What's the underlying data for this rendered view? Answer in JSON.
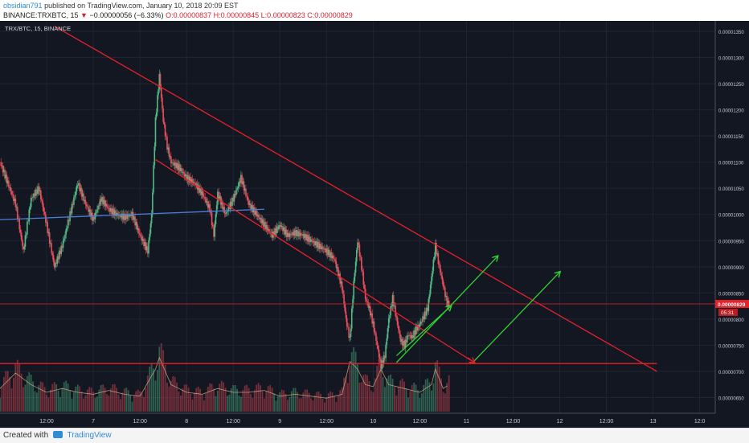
{
  "header": {
    "author": "obsidian791",
    "published_text": "published on TradingView.com, January 10, 2018 20:09 EST",
    "symbol_line": "BINANCE:TRXBTC, 15",
    "change_text": "−0.00000056 (−6.33%)",
    "ohlc_text": "O:0.00000837 H:0.00000845 L:0.00000823 C:0.00000829"
  },
  "footer": {
    "created_with": "Created with",
    "brand": "TradingView"
  },
  "colors": {
    "background": "#131722",
    "grid": "#1f2433",
    "up": "#53b987",
    "down": "#eb4d5c",
    "trend": "#e8202a",
    "arrow": "#32d232",
    "ma": "#4a7fd6"
  },
  "chart_data": {
    "type": "candlestick",
    "legend": "TRX/BTC, 15, BINANCE",
    "x_ticks": [
      "12:00",
      "7",
      "12:00",
      "8",
      "12:00",
      "9",
      "12:00",
      "10",
      "12:00",
      "11",
      "12:00",
      "12",
      "12:00",
      "13",
      "12:0"
    ],
    "x_tick_hours": [
      12,
      24,
      36,
      48,
      60,
      72,
      84,
      96,
      108,
      120,
      132,
      144,
      156,
      168,
      180
    ],
    "x_range_hours": [
      0,
      184
    ],
    "y_ticks": [
      "0.00001350",
      "0.00001300",
      "0.00001250",
      "0.00001200",
      "0.00001150",
      "0.00001100",
      "0.00001050",
      "0.00001000",
      "0.00000950",
      "0.00000900",
      "0.00000850",
      "0.00000800",
      "0.00000750",
      "0.00000700",
      "0.00000650"
    ],
    "y_tick_values": [
      1350,
      1300,
      1250,
      1200,
      1150,
      1100,
      1050,
      1000,
      950,
      900,
      850,
      800,
      750,
      700,
      650
    ],
    "y_range": [
      620,
      1370
    ],
    "price_unit_note": "values in 1e-8 BTC",
    "last_price_label": "0.00000829",
    "last_price_value": 829,
    "countdown_label": "05:31",
    "price_path": [
      [
        0,
        1100
      ],
      [
        2,
        1060
      ],
      [
        4,
        1020
      ],
      [
        6,
        930
      ],
      [
        8,
        1030
      ],
      [
        10,
        1050
      ],
      [
        12,
        980
      ],
      [
        14,
        900
      ],
      [
        16,
        940
      ],
      [
        18,
        1000
      ],
      [
        20,
        1060
      ],
      [
        22,
        1020
      ],
      [
        24,
        990
      ],
      [
        26,
        1030
      ],
      [
        28,
        1010
      ],
      [
        30,
        1000
      ],
      [
        32,
        995
      ],
      [
        34,
        1000
      ],
      [
        36,
        960
      ],
      [
        38,
        930
      ],
      [
        39,
        1000
      ],
      [
        40,
        1180
      ],
      [
        41,
        1265
      ],
      [
        42,
        1180
      ],
      [
        43,
        1130
      ],
      [
        44,
        1100
      ],
      [
        46,
        1090
      ],
      [
        48,
        1070
      ],
      [
        50,
        1060
      ],
      [
        52,
        1040
      ],
      [
        54,
        1010
      ],
      [
        55,
        960
      ],
      [
        56,
        1040
      ],
      [
        58,
        1000
      ],
      [
        60,
        1030
      ],
      [
        62,
        1070
      ],
      [
        64,
        1020
      ],
      [
        66,
        1000
      ],
      [
        68,
        980
      ],
      [
        70,
        960
      ],
      [
        72,
        980
      ],
      [
        74,
        960
      ],
      [
        76,
        965
      ],
      [
        78,
        960
      ],
      [
        80,
        950
      ],
      [
        82,
        940
      ],
      [
        84,
        930
      ],
      [
        86,
        915
      ],
      [
        88,
        860
      ],
      [
        89,
        800
      ],
      [
        90,
        760
      ],
      [
        91,
        870
      ],
      [
        92,
        950
      ],
      [
        93,
        900
      ],
      [
        94,
        840
      ],
      [
        95,
        820
      ],
      [
        96,
        790
      ],
      [
        97,
        750
      ],
      [
        98,
        710
      ],
      [
        99,
        730
      ],
      [
        100,
        800
      ],
      [
        101,
        840
      ],
      [
        102,
        800
      ],
      [
        103,
        760
      ],
      [
        104,
        750
      ],
      [
        105,
        770
      ],
      [
        106,
        765
      ],
      [
        107,
        780
      ],
      [
        108,
        790
      ],
      [
        109,
        805
      ],
      [
        110,
        820
      ],
      [
        111,
        880
      ],
      [
        112,
        940
      ],
      [
        113,
        900
      ],
      [
        114,
        865
      ],
      [
        115,
        830
      ],
      [
        115.5,
        829
      ]
    ],
    "volume_path": [
      [
        0,
        12
      ],
      [
        4,
        20
      ],
      [
        8,
        14
      ],
      [
        12,
        10
      ],
      [
        16,
        12
      ],
      [
        20,
        10
      ],
      [
        24,
        9
      ],
      [
        28,
        11
      ],
      [
        32,
        9
      ],
      [
        36,
        8
      ],
      [
        40,
        22
      ],
      [
        41,
        28
      ],
      [
        44,
        14
      ],
      [
        48,
        10
      ],
      [
        52,
        9
      ],
      [
        56,
        12
      ],
      [
        60,
        10
      ],
      [
        64,
        10
      ],
      [
        68,
        11
      ],
      [
        72,
        8
      ],
      [
        76,
        9
      ],
      [
        80,
        8
      ],
      [
        84,
        7
      ],
      [
        88,
        9
      ],
      [
        90,
        26
      ],
      [
        92,
        22
      ],
      [
        94,
        14
      ],
      [
        96,
        13
      ],
      [
        98,
        22
      ],
      [
        100,
        14
      ],
      [
        104,
        12
      ],
      [
        108,
        10
      ],
      [
        111,
        14
      ],
      [
        112,
        22
      ],
      [
        114,
        12
      ],
      [
        115.5,
        14
      ]
    ],
    "ma_line": [
      [
        0,
        990
      ],
      [
        68,
        1010
      ]
    ],
    "trendlines": [
      {
        "name": "upper-resistance",
        "from": [
          14,
          1360
        ],
        "to": [
          169,
          700
        ]
      },
      {
        "name": "lower-channel",
        "from": [
          40,
          1105
        ],
        "to": [
          122,
          717
        ]
      },
      {
        "name": "support",
        "from": [
          0,
          715
        ],
        "to": [
          169,
          715
        ]
      },
      {
        "name": "current-level",
        "from": [
          0,
          829
        ],
        "to": [
          184,
          829
        ]
      }
    ],
    "arrows": [
      {
        "name": "arrow-up-1",
        "from": [
          102,
          717
        ],
        "to": [
          128,
          920
        ]
      },
      {
        "name": "arrow-up-2",
        "from": [
          122,
          720
        ],
        "to": [
          144,
          890
        ]
      },
      {
        "name": "arrow-green-small",
        "from": [
          102,
          730
        ],
        "to": [
          116,
          825
        ]
      }
    ]
  }
}
